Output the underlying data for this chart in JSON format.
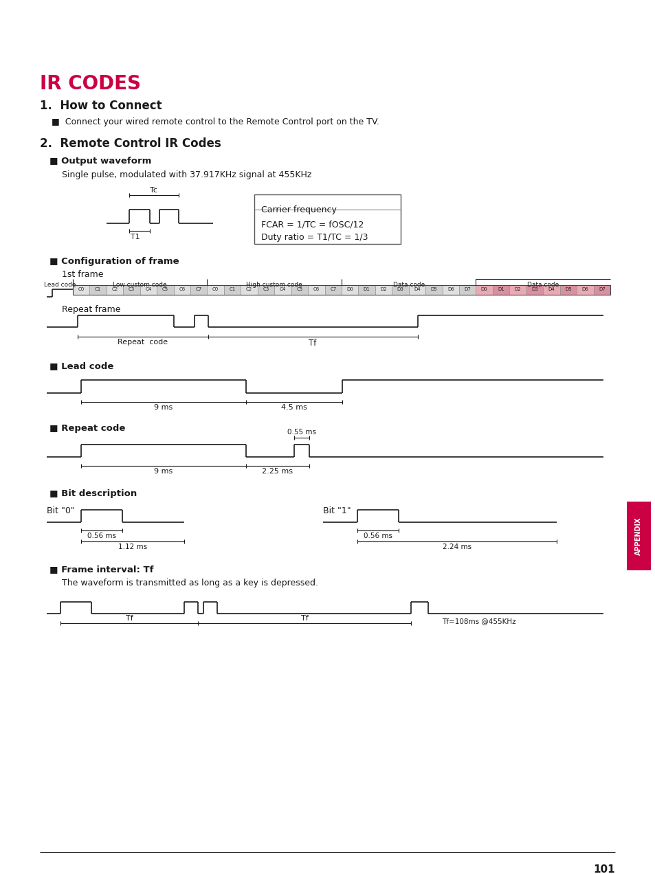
{
  "title": "IR CODES",
  "title_color": "#cc0044",
  "bg_color": "#ffffff",
  "text_color": "#000000",
  "section1_title": "1.  How to Connect",
  "section1_bullet": "■  Connect your wired remote control to the Remote Control port on the TV.",
  "section2_title": "2.  Remote Control IR Codes",
  "sub_output": "■ Output waveform",
  "sub_output_text": "Single pulse, modulated with 37.917KHz signal at 455KHz",
  "carrier_box": [
    "Carrier frequency",
    "FCAR = 1/TC = fOSC/12",
    "Duty ratio = T1/TC = 1/3"
  ],
  "sub_config": "■ Configuration of frame",
  "frame1_label": "1st frame",
  "frame_headers": [
    "Lead code",
    "Low custom code",
    "High custom code",
    "Data code",
    "Data code"
  ],
  "frame_cells_gray": [
    "C0",
    "C1",
    "C2",
    "C3",
    "C4",
    "C5",
    "C6",
    "C7",
    "C0",
    "C1",
    "C2",
    "C3",
    "C4",
    "C5",
    "C6",
    "C7",
    "D0",
    "D1",
    "D2",
    "D3",
    "D4",
    "D5",
    "D6",
    "D7"
  ],
  "frame_cells_pink": [
    "D0",
    "D1",
    "D2",
    "D3",
    "D4",
    "D5",
    "D6",
    "D7"
  ],
  "repeat_frame_label": "Repeat frame",
  "repeat_code_label": "Repeat  code",
  "tf_label": "Tf",
  "sub_lead": "■ Lead code",
  "lead_9ms": "9 ms",
  "lead_45ms": "4.5 ms",
  "sub_repeat": "■ Repeat code",
  "repeat_055ms": "0.55 ms",
  "repeat_9ms": "9 ms",
  "repeat_225ms": "2.25 ms",
  "sub_bit": "■ Bit description",
  "bit0_label": "Bit \"0\"",
  "bit0_056ms": "0.56 ms",
  "bit0_112ms": "1.12 ms",
  "bit1_label": "Bit \"1\"",
  "bit1_056ms": "0.56 ms",
  "bit1_224ms": "2.24 ms",
  "sub_frame_interval": "■ Frame interval: Tf",
  "frame_interval_text": "The waveform is transmitted as long as a key is depressed.",
  "tf_note": "Tf=108ms @455KHz",
  "page_number": "101",
  "appendix_label": "APPENDIX"
}
